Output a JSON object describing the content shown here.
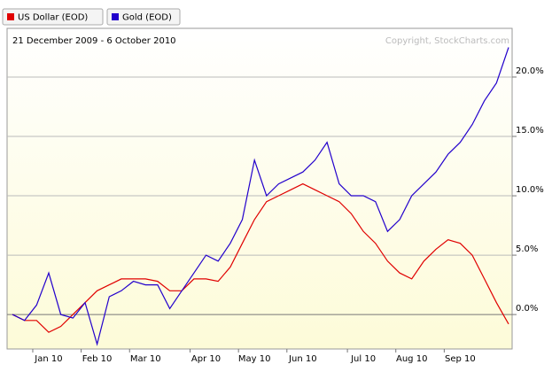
{
  "chart_data": {
    "type": "line",
    "legend": [
      "US Dollar (EOD)",
      "Gold (EOD)"
    ],
    "subtitle": "21 December 2009 - 6 October 2010",
    "annotation": "Copyright, StockCharts.com",
    "categories": [
      null,
      null,
      null,
      "Jan 10",
      null,
      null,
      null,
      "Feb 10",
      null,
      null,
      null,
      "Mar 10",
      null,
      null,
      null,
      null,
      "Apr 10",
      null,
      null,
      null,
      "May 10",
      null,
      null,
      null,
      "Jun 10",
      null,
      null,
      null,
      null,
      "Jul 10",
      null,
      null,
      null,
      "Aug 10",
      null,
      null,
      null,
      "Sep 10",
      null,
      null,
      null,
      null
    ],
    "series": [
      {
        "name": "US Dollar (EOD)",
        "color": "#e00000",
        "values": [
          0,
          -0.5,
          -0.5,
          -1.5,
          -1,
          0,
          1,
          2,
          2.5,
          3,
          3,
          3,
          2.8,
          2,
          2,
          3,
          3,
          2.8,
          4,
          6,
          8,
          9.5,
          10,
          10.5,
          11,
          10.5,
          10,
          9.5,
          8.5,
          7,
          6,
          4.5,
          3.5,
          3,
          4.5,
          5.5,
          6.3,
          6,
          5,
          3,
          1,
          -0.8
        ]
      },
      {
        "name": "Gold (EOD)",
        "color": "#2200cc",
        "values": [
          0,
          -0.5,
          0.8,
          3.5,
          0,
          -0.3,
          1,
          -2.5,
          1.5,
          2,
          2.8,
          2.5,
          2.5,
          0.5,
          2,
          3.5,
          5,
          4.5,
          6,
          8,
          13,
          10,
          11,
          11.5,
          12,
          13,
          14.5,
          11,
          10,
          10,
          9.5,
          7,
          8,
          10,
          11,
          12,
          13.5,
          14.5,
          16,
          18,
          19.5,
          22.5
        ]
      }
    ],
    "ylim": [
      -2.9,
      24.1
    ],
    "yticks": [
      {
        "value": 0,
        "label": "0.0%"
      },
      {
        "value": 5,
        "label": "5.0%"
      },
      {
        "value": 10,
        "label": "10.0%"
      },
      {
        "value": 15,
        "label": "15.0%"
      },
      {
        "value": 20,
        "label": "20.0%"
      }
    ],
    "grid": true
  }
}
